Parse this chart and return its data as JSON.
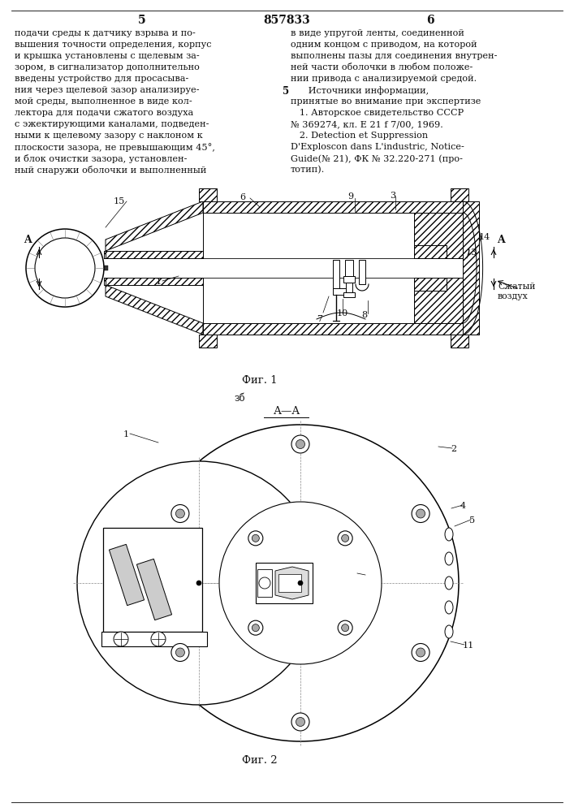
{
  "bg_color": "#ffffff",
  "text_color": "#111111",
  "page_num_left": "5",
  "page_num_center": "857833",
  "page_num_right": "6",
  "left_col_lines": [
    "подачи среды к датчику взрыва и по-",
    "вышения точности определения, корпус",
    "и крышка установлены с щелевым за-",
    "зором, в сигнализатор дополнительно",
    "введены устройство для просасыва-",
    "ния через щелевой зазор анализируе-",
    "мой среды, выполненное в виде кол-",
    "лектора для подачи сжатого воздуха",
    "с эжектирующими каналами, подведен-",
    "ными к щелевому зазору с наклоном к",
    "плоскости зазора, не превышающим 45°,",
    "и блок очистки зазора, установлен-",
    "ный снаружи оболочки и выполненный"
  ],
  "right_col_lines": [
    "в виде упругой ленты, соединенной",
    "одним концом с приводом, на которой",
    "выполнены пазы для соединения внутрен-",
    "ней части оболочки в любом положе-",
    "нии привода с анализируемой средой.",
    "      Источники информации,",
    "принятые во внимание при экспертизе",
    "   1. Авторское свидетельство СССР",
    "№ 369274, кл. Е 21 f 7/00, 1969.",
    "   2. Detection et Suppression",
    "D'Exploscon dans L'industric, Notice-",
    "Guide(№ 21), ФК № 32.220-271 (про-",
    "тотип)."
  ],
  "fig1_label": "Фиг. 1",
  "fig2_label": "Фиг. 2",
  "aa_label": "А—А",
  "zb_label": "зб",
  "compressed_air": "Сжатый\nвоздух"
}
